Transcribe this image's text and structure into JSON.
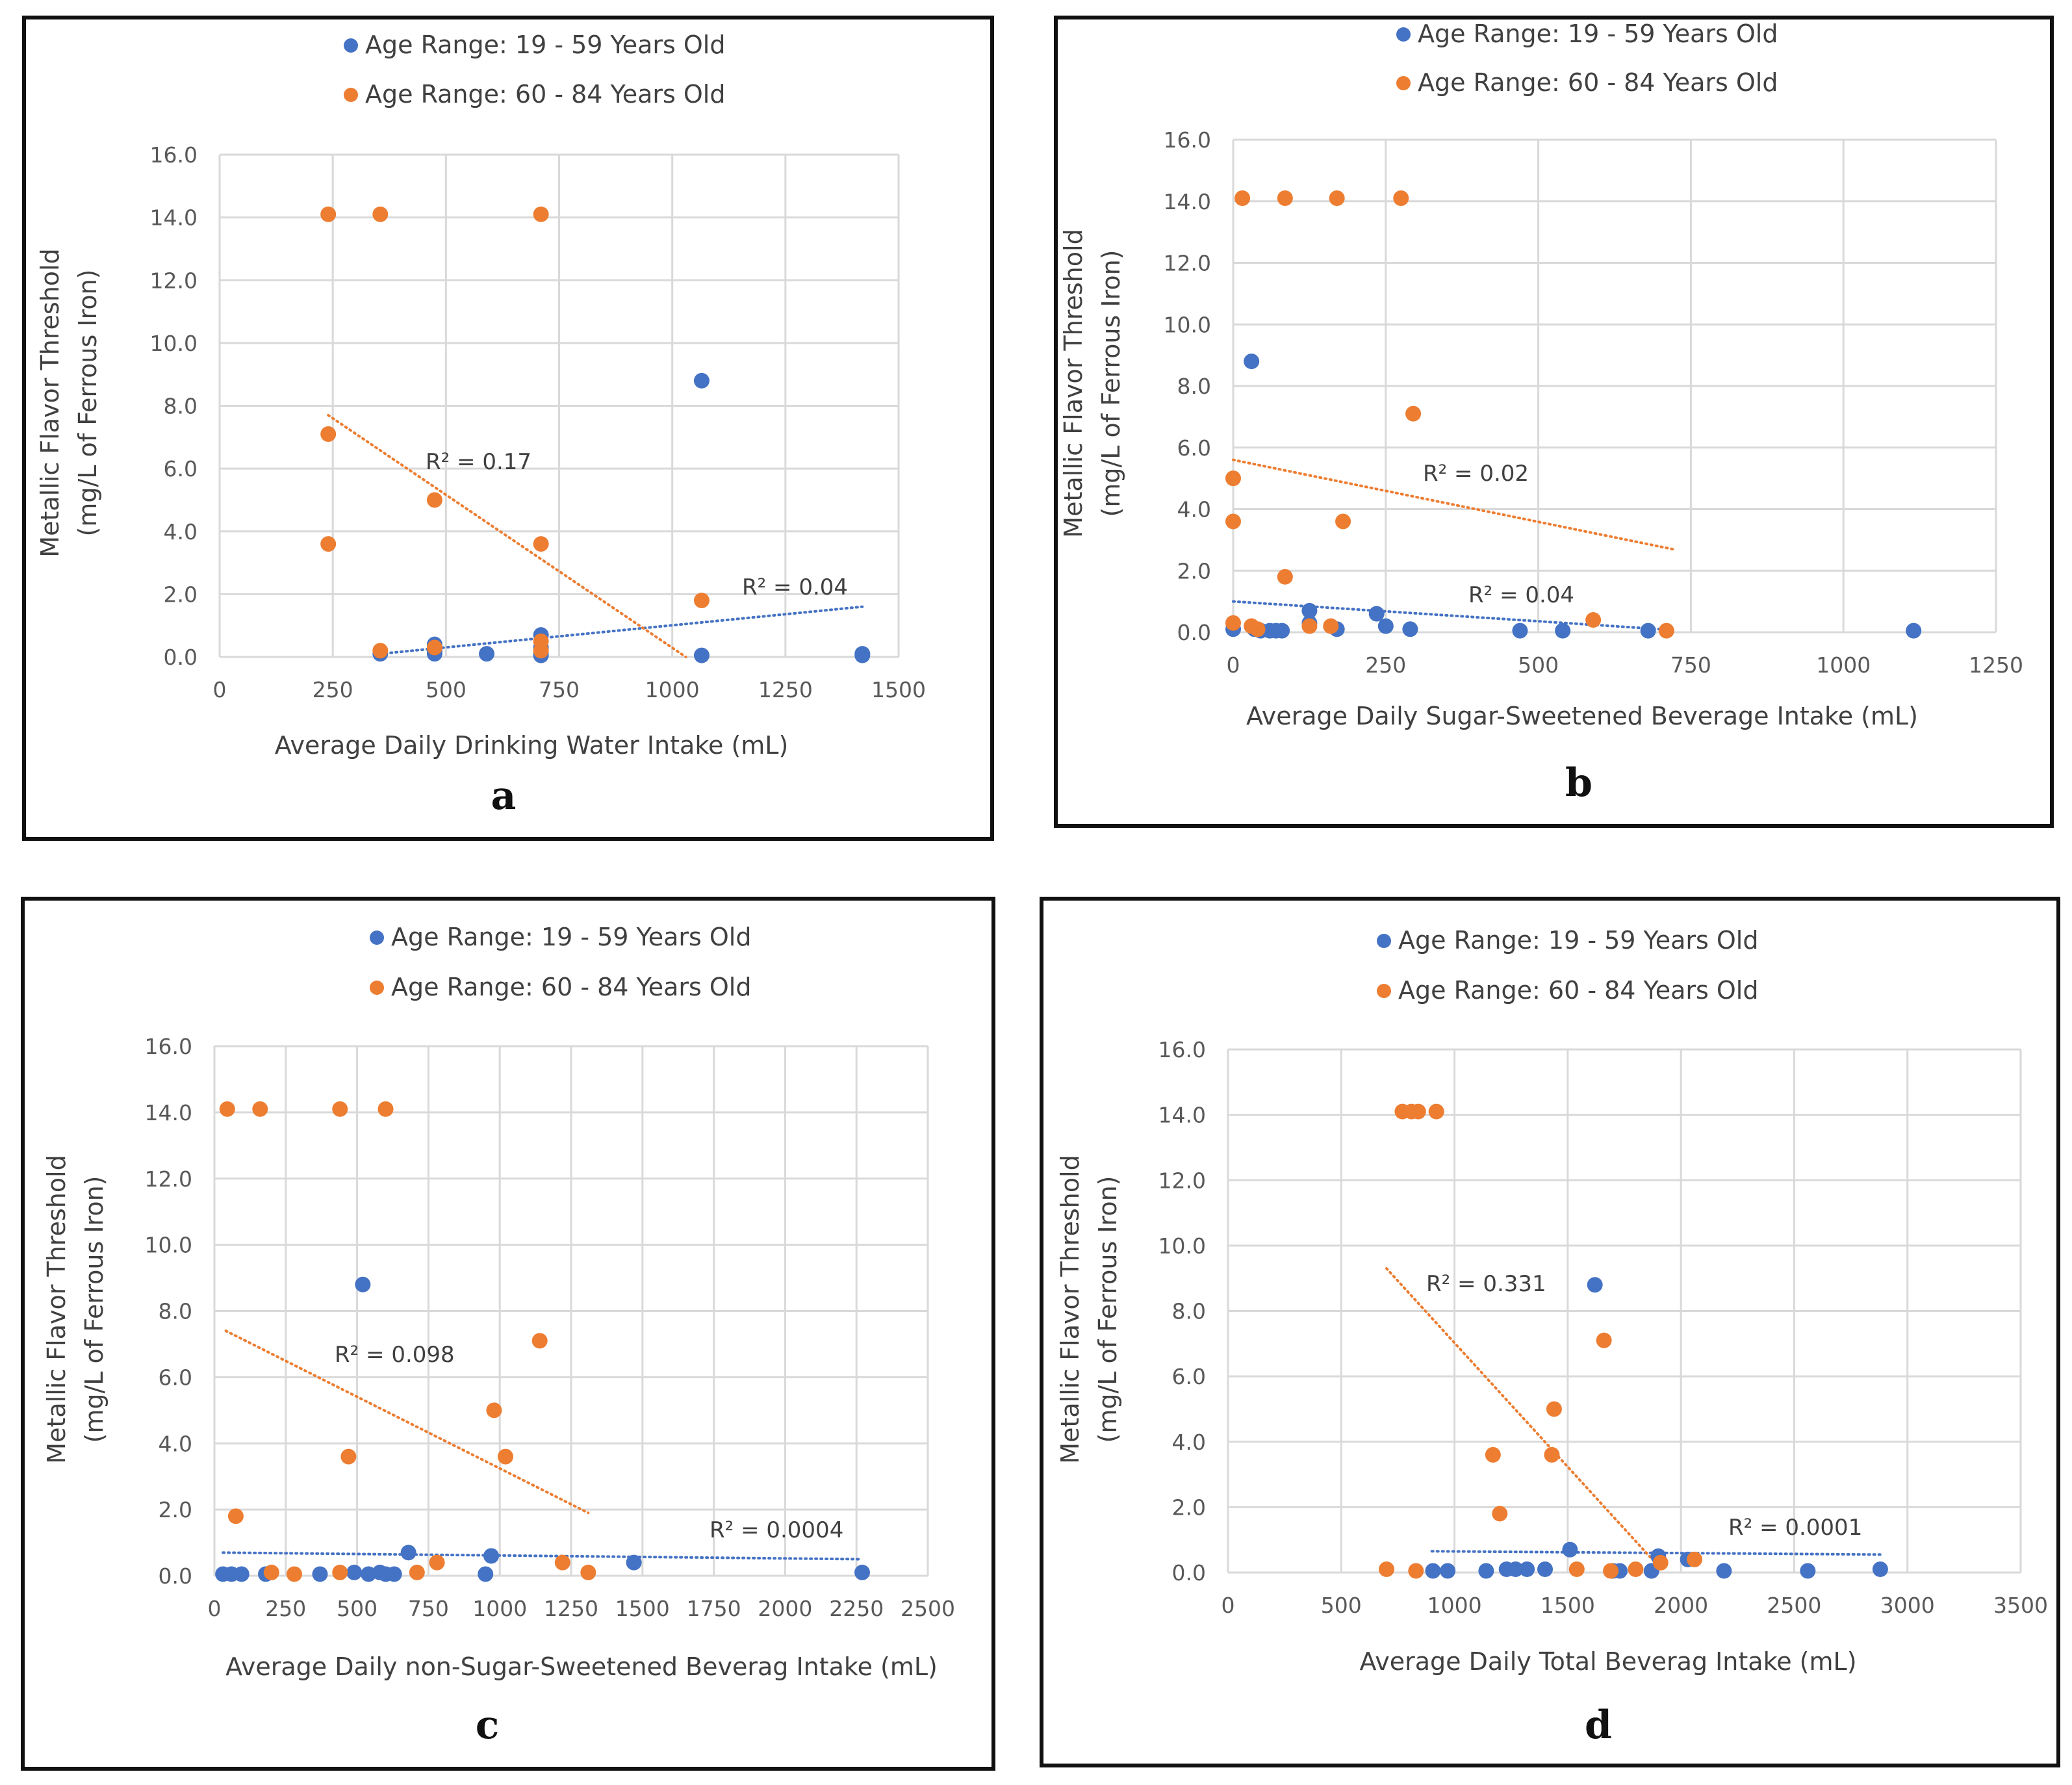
{
  "colors": {
    "young": "#4472c4",
    "old": "#ed7d31",
    "grid": "#d9d9d9",
    "text": "#404040",
    "border": "#111111"
  },
  "chart_data": [
    {
      "type": "scatter",
      "panel": "a",
      "xlabel": "Average Daily Drinking Water Intake (mL)",
      "ylabel_line1": "Metallic Flavor Threshold",
      "ylabel_line2": "(mg/L of Ferrous Iron)",
      "xlim": [
        0,
        1500
      ],
      "xticks": [
        0,
        250,
        500,
        750,
        1000,
        1250,
        1500
      ],
      "ylim": [
        0,
        16
      ],
      "yticks": [
        0,
        2,
        4,
        6,
        8,
        10,
        12,
        14,
        16
      ],
      "series": [
        {
          "name": "Age Range: 19 - 59 Years Old",
          "color": "#4472c4",
          "points": [
            [
              355,
              0.1
            ],
            [
              475,
              0.4
            ],
            [
              475,
              0.2
            ],
            [
              475,
              0.1
            ],
            [
              590,
              0.1
            ],
            [
              710,
              0.7
            ],
            [
              710,
              0.3
            ],
            [
              710,
              0.1
            ],
            [
              710,
              0.05
            ],
            [
              1065,
              8.8
            ],
            [
              1065,
              0.05
            ],
            [
              1420,
              0.1
            ],
            [
              1420,
              0.05
            ]
          ],
          "trend": {
            "x": [
              355,
              1420
            ],
            "y": [
              0.1,
              1.6
            ]
          },
          "r2": "R² = 0.04"
        },
        {
          "name": "Age Range: 60 - 84 Years Old",
          "color": "#ed7d31",
          "points": [
            [
              240,
              14.1
            ],
            [
              355,
              14.1
            ],
            [
              710,
              14.1
            ],
            [
              240,
              7.1
            ],
            [
              240,
              3.6
            ],
            [
              475,
              5.0
            ],
            [
              710,
              3.6
            ],
            [
              355,
              0.2
            ],
            [
              475,
              0.3
            ],
            [
              710,
              0.5
            ],
            [
              710,
              0.2
            ],
            [
              1065,
              1.8
            ]
          ],
          "trend": {
            "x": [
              240,
              1030
            ],
            "y": [
              7.7,
              0.0
            ]
          },
          "r2": "R² = 0.17"
        }
      ]
    },
    {
      "type": "scatter",
      "panel": "b",
      "xlabel": "Average Daily Sugar-Sweetened Beverage Intake (mL)",
      "ylabel_line1": "Metallic Flavor Threshold",
      "ylabel_line2": "(mg/L of Ferrous Iron)",
      "xlim": [
        0,
        1250
      ],
      "xticks": [
        0,
        250,
        500,
        750,
        1000,
        1250
      ],
      "ylim": [
        0,
        16
      ],
      "yticks": [
        0,
        2,
        4,
        6,
        8,
        10,
        12,
        14,
        16
      ],
      "series": [
        {
          "name": "Age Range: 19 - 59 Years Old",
          "color": "#4472c4",
          "points": [
            [
              0,
              0.1
            ],
            [
              30,
              8.8
            ],
            [
              35,
              0.1
            ],
            [
              45,
              0.05
            ],
            [
              60,
              0.05
            ],
            [
              70,
              0.05
            ],
            [
              80,
              0.05
            ],
            [
              125,
              0.7
            ],
            [
              125,
              0.3
            ],
            [
              170,
              0.1
            ],
            [
              235,
              0.6
            ],
            [
              250,
              0.2
            ],
            [
              290,
              0.1
            ],
            [
              470,
              0.05
            ],
            [
              540,
              0.05
            ],
            [
              680,
              0.05
            ],
            [
              1115,
              0.05
            ]
          ],
          "trend": {
            "x": [
              0,
              700
            ],
            "y": [
              1.0,
              0.1
            ]
          },
          "r2": "R² = 0.04"
        },
        {
          "name": "Age Range: 60 - 84 Years Old",
          "color": "#ed7d31",
          "points": [
            [
              15,
              14.1
            ],
            [
              85,
              14.1
            ],
            [
              170,
              14.1
            ],
            [
              275,
              14.1
            ],
            [
              295,
              7.1
            ],
            [
              0,
              5.0
            ],
            [
              0,
              3.6
            ],
            [
              180,
              3.6
            ],
            [
              85,
              1.8
            ],
            [
              0,
              0.3
            ],
            [
              30,
              0.2
            ],
            [
              40,
              0.1
            ],
            [
              125,
              0.2
            ],
            [
              160,
              0.2
            ],
            [
              590,
              0.4
            ],
            [
              710,
              0.05
            ]
          ],
          "trend": {
            "x": [
              0,
              720
            ],
            "y": [
              5.6,
              2.7
            ]
          },
          "r2": "R² = 0.02"
        }
      ]
    },
    {
      "type": "scatter",
      "panel": "c",
      "xlabel": "Average Daily non-Sugar-Sweetened Beverag Intake (mL)",
      "ylabel_line1": "Metallic Flavor Threshold",
      "ylabel_line2": "(mg/L of Ferrous Iron)",
      "xlim": [
        0,
        2500
      ],
      "xticks": [
        0,
        250,
        500,
        750,
        1000,
        1250,
        1500,
        1750,
        2000,
        2250,
        2500
      ],
      "ylim": [
        0,
        16
      ],
      "yticks": [
        0,
        2,
        4,
        6,
        8,
        10,
        12,
        14,
        16
      ],
      "series": [
        {
          "name": "Age Range: 19 - 59 Years Old",
          "color": "#4472c4",
          "points": [
            [
              30,
              0.05
            ],
            [
              60,
              0.05
            ],
            [
              95,
              0.05
            ],
            [
              180,
              0.05
            ],
            [
              370,
              0.05
            ],
            [
              490,
              0.1
            ],
            [
              520,
              8.8
            ],
            [
              540,
              0.05
            ],
            [
              580,
              0.1
            ],
            [
              600,
              0.05
            ],
            [
              630,
              0.05
            ],
            [
              680,
              0.7
            ],
            [
              950,
              0.05
            ],
            [
              970,
              0.6
            ],
            [
              1470,
              0.4
            ],
            [
              2270,
              0.1
            ]
          ],
          "trend": {
            "x": [
              30,
              2270
            ],
            "y": [
              0.7,
              0.5
            ]
          },
          "r2": "R² = 0.0004"
        },
        {
          "name": "Age Range: 60 - 84 Years Old",
          "color": "#ed7d31",
          "points": [
            [
              45,
              14.1
            ],
            [
              160,
              14.1
            ],
            [
              440,
              14.1
            ],
            [
              600,
              14.1
            ],
            [
              1140,
              7.1
            ],
            [
              980,
              5.0
            ],
            [
              470,
              3.6
            ],
            [
              1020,
              3.6
            ],
            [
              75,
              1.8
            ],
            [
              200,
              0.1
            ],
            [
              280,
              0.05
            ],
            [
              440,
              0.1
            ],
            [
              710,
              0.1
            ],
            [
              780,
              0.4
            ],
            [
              1220,
              0.4
            ],
            [
              1310,
              0.1
            ]
          ],
          "trend": {
            "x": [
              40,
              1310
            ],
            "y": [
              7.4,
              1.9
            ]
          },
          "r2": "R² = 0.098"
        }
      ]
    },
    {
      "type": "scatter",
      "panel": "d",
      "xlabel": "Average Daily Total Beverag Intake (mL)",
      "ylabel_line1": "Metallic Flavor Threshold",
      "ylabel_line2": "(mg/L of Ferrous Iron)",
      "xlim": [
        0,
        3500
      ],
      "xticks": [
        0,
        500,
        1000,
        1500,
        2000,
        2500,
        3000,
        3500
      ],
      "ylim": [
        0,
        16
      ],
      "yticks": [
        0,
        2,
        4,
        6,
        8,
        10,
        12,
        14,
        16
      ],
      "series": [
        {
          "name": "Age Range: 19 - 59 Years Old",
          "color": "#4472c4",
          "points": [
            [
              905,
              0.05
            ],
            [
              970,
              0.05
            ],
            [
              1140,
              0.05
            ],
            [
              1230,
              0.1
            ],
            [
              1270,
              0.1
            ],
            [
              1320,
              0.1
            ],
            [
              1400,
              0.1
            ],
            [
              1510,
              0.7
            ],
            [
              1620,
              8.8
            ],
            [
              1700,
              0.05
            ],
            [
              1730,
              0.05
            ],
            [
              1870,
              0.05
            ],
            [
              1900,
              0.5
            ],
            [
              2030,
              0.4
            ],
            [
              2190,
              0.05
            ],
            [
              2560,
              0.05
            ],
            [
              2880,
              0.1
            ]
          ],
          "trend": {
            "x": [
              900,
              2880
            ],
            "y": [
              0.65,
              0.55
            ]
          },
          "r2": "R² = 0.0001"
        },
        {
          "name": "Age Range: 60 - 84 Years Old",
          "color": "#ed7d31",
          "points": [
            [
              770,
              14.1
            ],
            [
              810,
              14.1
            ],
            [
              840,
              14.1
            ],
            [
              920,
              14.1
            ],
            [
              1660,
              7.1
            ],
            [
              1440,
              5.0
            ],
            [
              1170,
              3.6
            ],
            [
              1430,
              3.6
            ],
            [
              1200,
              1.8
            ],
            [
              700,
              0.1
            ],
            [
              830,
              0.05
            ],
            [
              1540,
              0.1
            ],
            [
              1690,
              0.05
            ],
            [
              1800,
              0.1
            ],
            [
              1910,
              0.3
            ],
            [
              2060,
              0.4
            ]
          ],
          "trend": {
            "x": [
              700,
              1900
            ],
            "y": [
              9.3,
              0.2
            ]
          },
          "r2": "R² = 0.331"
        }
      ]
    }
  ]
}
